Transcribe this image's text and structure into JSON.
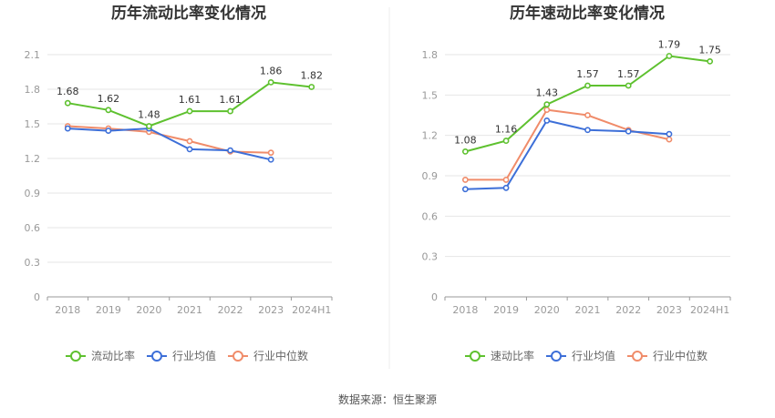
{
  "footer": {
    "source": "数据来源：恒生聚源"
  },
  "colors": {
    "company": "#5ec12f",
    "avg": "#3d6fd8",
    "median": "#f08c6a"
  },
  "chart_data": [
    {
      "type": "line",
      "title": "历年流动比率变化情况",
      "categories": [
        "2018",
        "2019",
        "2020",
        "2021",
        "2022",
        "2023",
        "2024H1"
      ],
      "yticks": [
        "0",
        "0.3",
        "0.6",
        "0.9",
        "1.2",
        "1.5",
        "1.8",
        "2.1"
      ],
      "ylim": [
        0,
        2.1
      ],
      "grid": true,
      "legend_position": "bottom",
      "series": [
        {
          "name": "流动比率",
          "key": "company",
          "values": [
            1.68,
            1.62,
            1.48,
            1.61,
            1.61,
            1.86,
            1.82
          ],
          "labels": [
            "1.68",
            "1.62",
            "1.48",
            "1.61",
            "1.61",
            "1.86",
            "1.82"
          ]
        },
        {
          "name": "行业均值",
          "key": "avg",
          "values": [
            1.46,
            1.44,
            1.46,
            1.28,
            1.27,
            1.19,
            null
          ]
        },
        {
          "name": "行业中位数",
          "key": "median",
          "values": [
            1.48,
            1.46,
            1.43,
            1.35,
            1.26,
            1.25,
            null
          ]
        }
      ]
    },
    {
      "type": "line",
      "title": "历年速动比率变化情况",
      "categories": [
        "2018",
        "2019",
        "2020",
        "2021",
        "2022",
        "2023",
        "2024H1"
      ],
      "yticks": [
        "0",
        "0.3",
        "0.6",
        "0.9",
        "1.2",
        "1.5",
        "1.8"
      ],
      "ylim": [
        0,
        1.8
      ],
      "grid": true,
      "legend_position": "bottom",
      "series": [
        {
          "name": "速动比率",
          "key": "company",
          "values": [
            1.08,
            1.16,
            1.43,
            1.57,
            1.57,
            1.79,
            1.75
          ],
          "labels": [
            "1.08",
            "1.16",
            "1.43",
            "1.57",
            "1.57",
            "1.79",
            "1.75"
          ]
        },
        {
          "name": "行业均值",
          "key": "avg",
          "values": [
            0.8,
            0.81,
            1.31,
            1.24,
            1.23,
            1.21,
            null
          ]
        },
        {
          "name": "行业中位数",
          "key": "median",
          "values": [
            0.87,
            0.87,
            1.39,
            1.35,
            1.24,
            1.17,
            null
          ]
        }
      ]
    }
  ]
}
